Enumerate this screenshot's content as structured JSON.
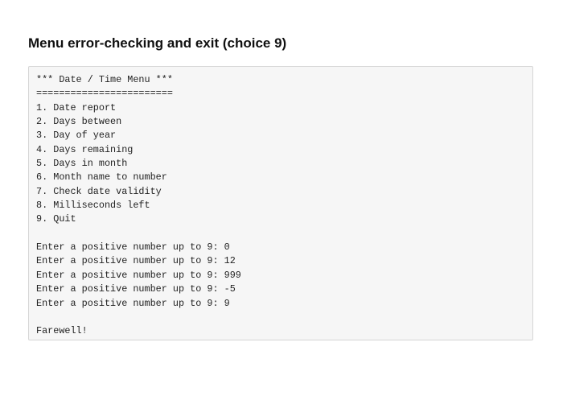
{
  "title": "Menu error-checking and exit (choice 9)",
  "output_lines": [
    "*** Date / Time Menu ***",
    "========================",
    "1. Date report",
    "2. Days between",
    "3. Day of year",
    "4. Days remaining",
    "5. Days in month",
    "6. Month name to number",
    "7. Check date validity",
    "8. Milliseconds left",
    "9. Quit",
    "",
    "Enter a positive number up to 9: 0",
    "Enter a positive number up to 9: 12",
    "Enter a positive number up to 9: 999",
    "Enter a positive number up to 9: -5",
    "Enter a positive number up to 9: 9",
    "",
    "Farewell!"
  ]
}
